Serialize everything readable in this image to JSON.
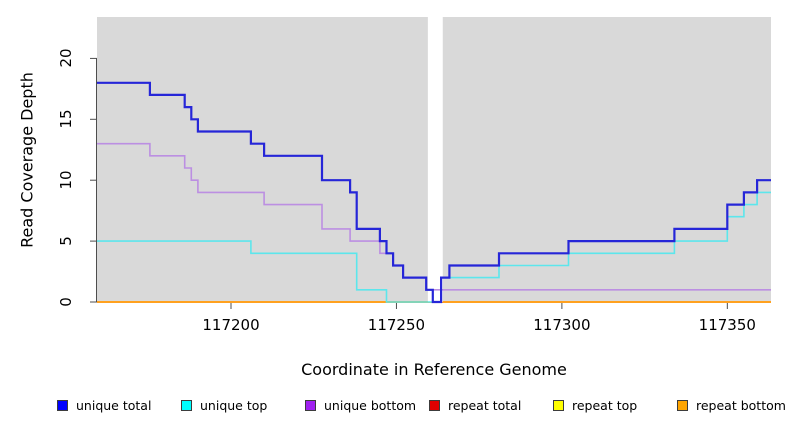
{
  "figure": {
    "x_axis_title": "Coordinate in Reference Genome",
    "y_axis_title": "Read Coverage Depth"
  },
  "chart_data": {
    "type": "line",
    "subtype": "step-after",
    "title": "",
    "xlabel": "Coordinate in Reference Genome",
    "ylabel": "Read Coverage Depth",
    "xlim": [
      117159.5,
      117363.2
    ],
    "ylim": [
      0,
      23.4
    ],
    "x_ticks": [
      117200,
      117250,
      117300,
      117350
    ],
    "y_ticks": [
      0,
      5,
      10,
      15,
      20
    ],
    "grid": false,
    "plot_background": "#D9D9D9",
    "outer_background": "#FFFFFF",
    "masked_region": {
      "from": 117259.5,
      "to": 117264.0,
      "color": "#FFFFFF"
    },
    "legend_position": "bottom",
    "x_end": 117363.2,
    "series": [
      {
        "name": "unique total",
        "legend_color": "#0000FF",
        "line_color": "#2626D8",
        "line_width": 2.2,
        "steps": [
          [
            117159.5,
            18
          ],
          [
            117175.5,
            17
          ],
          [
            117186,
            16
          ],
          [
            117188,
            15
          ],
          [
            117190,
            14
          ],
          [
            117206,
            13
          ],
          [
            117210,
            12
          ],
          [
            117227.5,
            10
          ],
          [
            117236,
            9
          ],
          [
            117238,
            6
          ],
          [
            117245,
            5
          ],
          [
            117247,
            4
          ],
          [
            117249,
            3
          ],
          [
            117252,
            2
          ],
          [
            117259,
            1
          ],
          [
            117261,
            0
          ],
          [
            117263.5,
            2
          ],
          [
            117266,
            3
          ],
          [
            117281,
            4
          ],
          [
            117302,
            5
          ],
          [
            117334,
            6
          ],
          [
            117350,
            8
          ],
          [
            117355,
            9
          ],
          [
            117359,
            10
          ]
        ]
      },
      {
        "name": "unique top",
        "legend_color": "#00FFFF",
        "line_color": "#5CE6EC",
        "line_width": 1.6,
        "steps": [
          [
            117159.5,
            5
          ],
          [
            117206,
            4
          ],
          [
            117238,
            1
          ],
          [
            117247,
            0
          ],
          [
            117263.5,
            2
          ],
          [
            117281,
            3
          ],
          [
            117302,
            4
          ],
          [
            117334,
            5
          ],
          [
            117350,
            7
          ],
          [
            117355,
            8
          ],
          [
            117359,
            9
          ]
        ]
      },
      {
        "name": "unique bottom",
        "legend_color": "#A020F0",
        "line_color": "#BC8FE2",
        "line_width": 1.6,
        "steps": [
          [
            117159.5,
            13
          ],
          [
            117175.5,
            12
          ],
          [
            117186,
            11
          ],
          [
            117188,
            10
          ],
          [
            117190,
            9
          ],
          [
            117210,
            8
          ],
          [
            117227.5,
            6
          ],
          [
            117236,
            5
          ],
          [
            117245,
            4
          ],
          [
            117249,
            3
          ],
          [
            117252,
            2
          ],
          [
            117259,
            1
          ]
        ]
      },
      {
        "name": "repeat total",
        "legend_color": "#E00000",
        "line_color": "#E00000",
        "line_width": 1.6,
        "steps": [
          [
            117159.5,
            0
          ]
        ]
      },
      {
        "name": "repeat top",
        "legend_color": "#FFFF00",
        "line_color": "#FFFF00",
        "line_width": 1.6,
        "steps": [
          [
            117159.5,
            0
          ]
        ]
      },
      {
        "name": "repeat bottom",
        "legend_color": "#FFA500",
        "line_color": "#FFA11F",
        "line_width": 2,
        "steps": [
          [
            117159.5,
            0
          ]
        ]
      }
    ]
  }
}
